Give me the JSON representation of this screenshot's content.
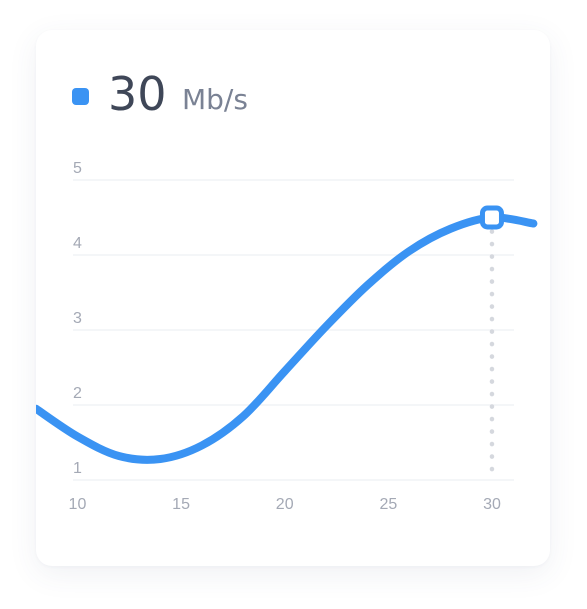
{
  "widget": {
    "value": "30",
    "unit": "Mb/s",
    "accent_color": "#3a93f3"
  },
  "chart_data": {
    "type": "line",
    "x": [
      8,
      10,
      12,
      14,
      16,
      18,
      20,
      22,
      24,
      26,
      28,
      30,
      32
    ],
    "series": [
      {
        "values": [
          1.95,
          1.58,
          1.32,
          1.28,
          1.46,
          1.85,
          2.45,
          3.05,
          3.6,
          4.05,
          4.35,
          4.5,
          4.42
        ]
      }
    ],
    "x_ticks": [
      10,
      15,
      20,
      25,
      30
    ],
    "y_ticks": [
      1,
      2,
      3,
      4,
      5
    ],
    "xlim": [
      8,
      32.8
    ],
    "ylim": [
      1,
      5
    ],
    "grid": true,
    "highlight": {
      "x": 30,
      "y": 4.5
    }
  }
}
